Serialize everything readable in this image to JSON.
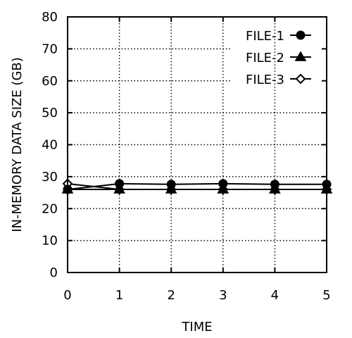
{
  "chart_data": {
    "type": "line",
    "title": "",
    "xlabel": "TIME",
    "ylabel": "IN-MEMORY DATA SIZE (GB)",
    "x": [
      0,
      1,
      2,
      3,
      4,
      5
    ],
    "xlim": [
      0,
      5
    ],
    "ylim": [
      0,
      80
    ],
    "x_ticks": [
      "0",
      "1",
      "2",
      "3",
      "4",
      "5"
    ],
    "y_ticks": [
      "0",
      "10",
      "20",
      "30",
      "40",
      "50",
      "60",
      "70",
      "80"
    ],
    "grid": "dotted",
    "legend_position": "top-right",
    "series": [
      {
        "name": "FILE-1",
        "marker": "filled-circle",
        "values": [
          26.0,
          27.8,
          27.6,
          27.8,
          27.6,
          27.6
        ]
      },
      {
        "name": "FILE-2",
        "marker": "filled-triangle",
        "values": [
          26.0,
          26.0,
          26.0,
          26.0,
          26.0,
          26.0
        ]
      },
      {
        "name": "FILE-3",
        "marker": "open-diamond",
        "values": [
          27.8,
          26.0,
          26.0,
          26.0,
          26.0,
          26.0
        ]
      }
    ],
    "colors": {
      "line": "#000000",
      "grid": "#000000",
      "background": "#ffffff"
    }
  }
}
